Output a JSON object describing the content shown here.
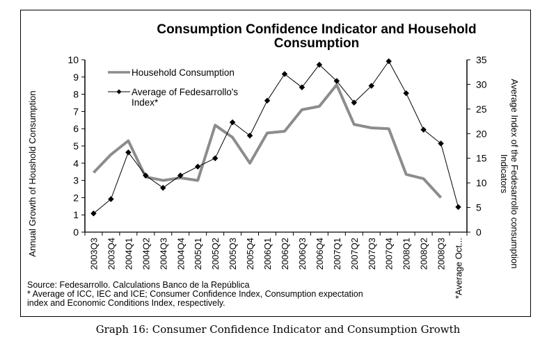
{
  "chart_data": {
    "type": "line",
    "title_lines": [
      "Consumption Confidence Indicator and Household",
      "Consumption"
    ],
    "categories": [
      "2003Q3",
      "2003Q4",
      "2004Q1",
      "2004Q2",
      "2004Q3",
      "2004Q4",
      "2005Q1",
      "2005Q2",
      "2005Q3",
      "2005Q4",
      "2006Q1",
      "2006Q2",
      "2006Q3",
      "2006Q4",
      "2007Q1",
      "2007Q2",
      "2007Q3",
      "2007Q4",
      "2008Q1",
      "2008Q2",
      "2008Q3",
      "*Average Oct..."
    ],
    "series": [
      {
        "name": "Household Consumption",
        "axis": "left",
        "color": "#8c8c8c",
        "marker": "none",
        "values": [
          3.45,
          4.5,
          5.3,
          3.2,
          3.0,
          3.15,
          3.0,
          6.2,
          5.5,
          4.0,
          5.75,
          5.85,
          7.1,
          7.3,
          8.55,
          6.25,
          6.05,
          6.0,
          3.35,
          3.1,
          2.0,
          null
        ]
      },
      {
        "name": "Average of Fedesarrollo's Index*",
        "legend_lines": [
          "Average of Fedesarrollo's",
          "Index*"
        ],
        "axis": "right",
        "color": "#000000",
        "marker": "diamond",
        "values": [
          3.8,
          6.7,
          16.2,
          11.5,
          9.0,
          11.5,
          13.3,
          15.0,
          22.3,
          19.6,
          26.7,
          32.1,
          29.4,
          34.0,
          30.7,
          26.3,
          29.7,
          34.7,
          28.2,
          20.8,
          18.0,
          5.1
        ]
      }
    ],
    "left_axis": {
      "label": "Annual Growth of Houshold Consumption",
      "ylim": [
        0,
        10
      ],
      "ticks": [
        "0",
        "1",
        "2",
        "3",
        "4",
        "5",
        "6",
        "7",
        "8",
        "9",
        "10"
      ]
    },
    "right_axis": {
      "label_lines": [
        "Average Index of the Fedesarrollo consumption",
        "Indicators"
      ],
      "ylim": [
        0,
        35
      ],
      "ticks": [
        "0",
        "5",
        "10",
        "15",
        "20",
        "25",
        "30",
        "35"
      ]
    },
    "legend_position": "top-left",
    "grid": false
  },
  "notes": {
    "source": "Source: Fedesarrollo. Calculations Banco de la República",
    "footnote_1": "* Average of ICC, IEC and ICE; Consumer Confidence Index, Consumption expectation",
    "footnote_2": "index and Economic Conditions Index, respectively."
  },
  "caption": "Graph 16: Consumer Confidence Indicator and Consumption Growth"
}
